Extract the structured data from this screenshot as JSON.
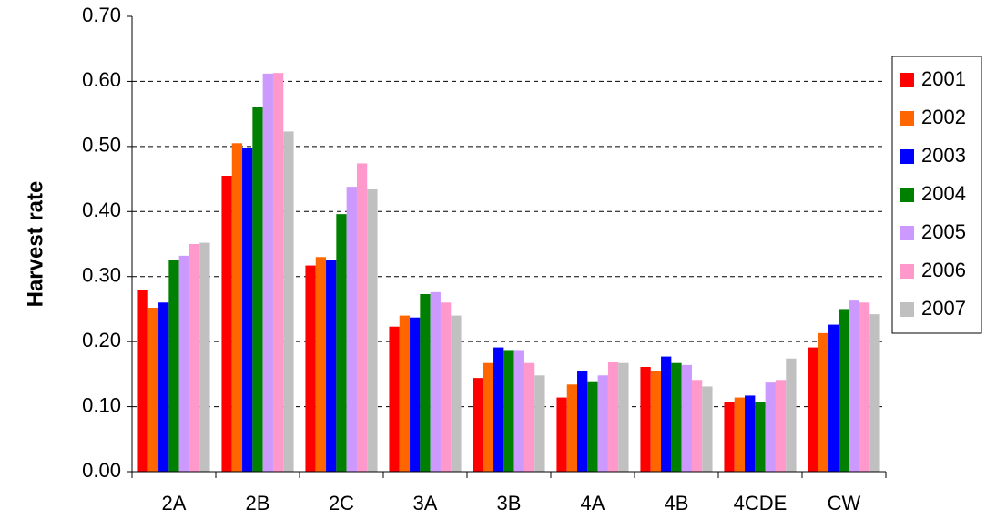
{
  "chart_data": {
    "type": "bar",
    "y_label": "Harvest rate",
    "categories": [
      "2A",
      "2B",
      "2C",
      "3A",
      "3B",
      "4A",
      "4B",
      "4CDE",
      "CW"
    ],
    "series": [
      {
        "name": "2001",
        "color": "#ff0000",
        "values": [
          0.28,
          0.455,
          0.317,
          0.223,
          0.144,
          0.114,
          0.161,
          0.107,
          0.191
        ]
      },
      {
        "name": "2002",
        "color": "#ff6600",
        "values": [
          0.252,
          0.505,
          0.33,
          0.24,
          0.167,
          0.134,
          0.154,
          0.114,
          0.213
        ]
      },
      {
        "name": "2003",
        "color": "#0000ff",
        "values": [
          0.26,
          0.497,
          0.325,
          0.237,
          0.191,
          0.154,
          0.177,
          0.117,
          0.226
        ]
      },
      {
        "name": "2004",
        "color": "#008000",
        "values": [
          0.325,
          0.56,
          0.396,
          0.273,
          0.187,
          0.139,
          0.167,
          0.107,
          0.25
        ]
      },
      {
        "name": "2005",
        "color": "#cc99ff",
        "values": [
          0.332,
          0.612,
          0.438,
          0.276,
          0.187,
          0.148,
          0.164,
          0.137,
          0.263
        ]
      },
      {
        "name": "2006",
        "color": "#ff99cc",
        "values": [
          0.35,
          0.613,
          0.474,
          0.26,
          0.167,
          0.168,
          0.141,
          0.141,
          0.26
        ]
      },
      {
        "name": "2007",
        "color": "#c0c0c0",
        "values": [
          0.352,
          0.523,
          0.434,
          0.24,
          0.148,
          0.167,
          0.131,
          0.174,
          0.242
        ]
      }
    ],
    "ylim": [
      0,
      0.7
    ],
    "yticks": [
      {
        "value": 0,
        "label": "0.00"
      },
      {
        "value": 0.1,
        "label": "0.10"
      },
      {
        "value": 0.2,
        "label": "0.20"
      },
      {
        "value": 0.3,
        "label": "0.30"
      },
      {
        "value": 0.4,
        "label": "0.40"
      },
      {
        "value": 0.5,
        "label": "0.50"
      },
      {
        "value": 0.6,
        "label": "0.60"
      },
      {
        "value": 0.7,
        "label": "0.70"
      }
    ],
    "grid": true,
    "legend": "right"
  }
}
